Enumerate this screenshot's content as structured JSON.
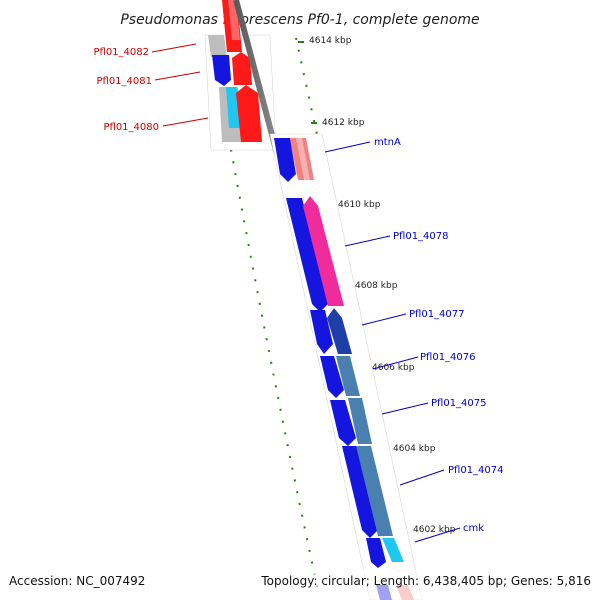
{
  "title": "Pseudomonas fluorescens Pf0-1, complete genome",
  "footer": {
    "accession": "Accession: NC_007492",
    "summary": "Topology: circular; Length: 6,438,405 bp; Genes: 5,816"
  },
  "kbp_ticks": [
    "4614 kbp",
    "4612 kbp",
    "4610 kbp",
    "4608 kbp",
    "4606 kbp",
    "4604 kbp",
    "4602 kbp"
  ],
  "gene_labels": {
    "left": [
      "Pfl01_4082",
      "Pfl01_4081",
      "Pfl01_4080"
    ],
    "right": [
      "mtnA",
      "Pfl01_4078",
      "Pfl01_4077",
      "Pfl01_4076",
      "Pfl01_4075",
      "Pfl01_4074",
      "cmk"
    ]
  },
  "colors": {
    "left_label": "#cc0000",
    "right_label": "#0000cc",
    "tick_green": "#2e7d1e",
    "backbone": "#808080"
  }
}
